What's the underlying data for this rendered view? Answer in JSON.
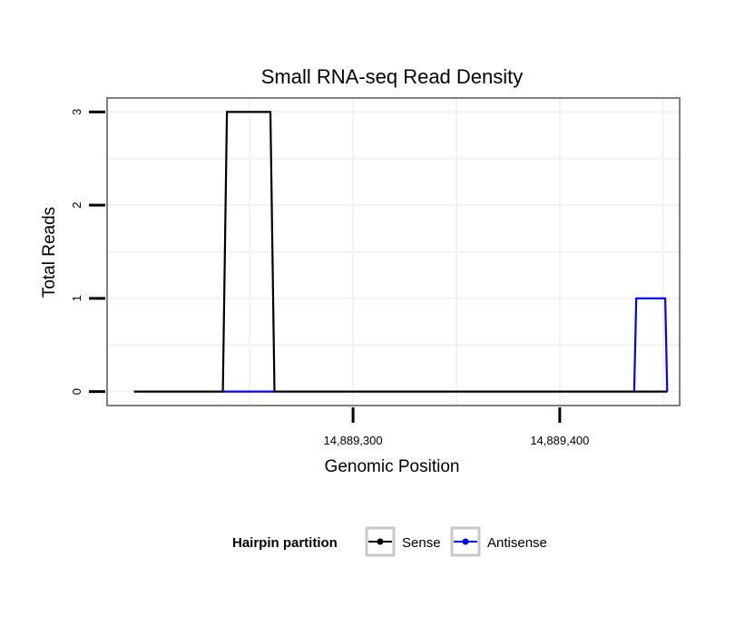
{
  "chart_data": {
    "type": "line",
    "title": "Small RNA-seq Read Density",
    "xlabel": "Genomic Position",
    "ylabel": "Total Reads",
    "xlim": [
      14889181,
      14889458
    ],
    "ylim": [
      -0.15,
      3.15
    ],
    "x_ticks": [
      14889300,
      14889400
    ],
    "x_tick_labels": [
      "14,889,300",
      "14,889,400"
    ],
    "y_ticks": [
      0,
      1,
      2,
      3
    ],
    "y_tick_labels": [
      "0",
      "1",
      "2",
      "3"
    ],
    "grid": true,
    "series": [
      {
        "name": "Sense",
        "color": "#000000",
        "x": [
          14889194,
          14889237,
          14889239,
          14889260,
          14889262,
          14889452
        ],
        "y": [
          0,
          0,
          3,
          3,
          0,
          0
        ]
      },
      {
        "name": "Antisense",
        "color": "#0000ff",
        "x": [
          14889237,
          14889262,
          14889371,
          14889436,
          14889437,
          14889451,
          14889452
        ],
        "y": [
          0,
          0,
          null,
          0,
          1,
          1,
          0
        ]
      }
    ],
    "legend": {
      "title": "Hairpin partition",
      "position": "bottom",
      "entries": [
        "Sense",
        "Antisense"
      ]
    }
  }
}
